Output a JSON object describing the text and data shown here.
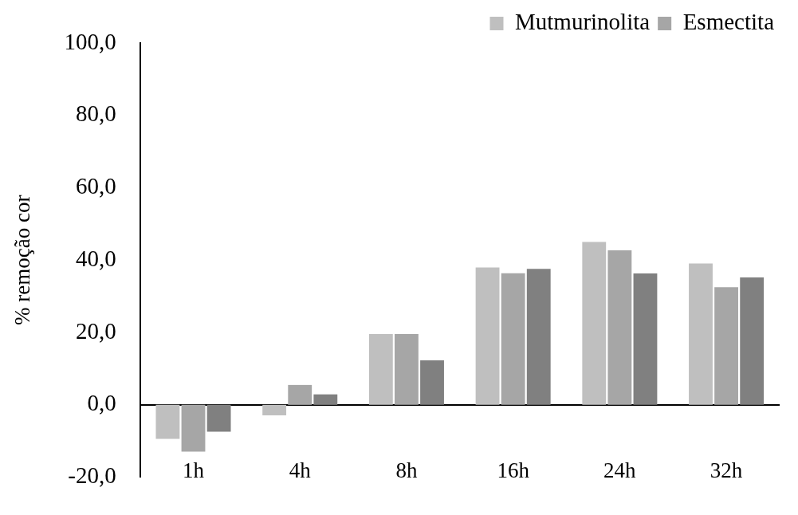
{
  "chart_data": {
    "type": "bar",
    "ylabel": "% remoção cor",
    "categories": [
      "1h",
      "4h",
      "8h",
      "16h",
      "24h",
      "32h"
    ],
    "series": [
      {
        "name": "Mutmurinolita",
        "color": "#bfbfbf",
        "values": [
          -9.4,
          -2.9,
          19.6,
          38.0,
          45.0,
          39.1
        ]
      },
      {
        "name": "Esmectita",
        "color": "#a6a6a6",
        "values": [
          -12.9,
          5.5,
          19.6,
          36.4,
          42.7,
          32.5
        ]
      },
      {
        "color": "#808080",
        "values": [
          -7.4,
          2.9,
          12.3,
          37.6,
          36.3,
          35.2
        ]
      }
    ],
    "ylim": [
      -20,
      100
    ],
    "yticks": [
      {
        "value": -20,
        "label": "-20,0"
      },
      {
        "value": 0,
        "label": "0,0"
      },
      {
        "value": 20,
        "label": "20,0"
      },
      {
        "value": 40,
        "label": "40,0"
      },
      {
        "value": 60,
        "label": "60,0"
      },
      {
        "value": 80,
        "label": "80,0"
      },
      {
        "value": 100,
        "label": "100,0"
      }
    ],
    "grid": false,
    "legend": "top right"
  }
}
